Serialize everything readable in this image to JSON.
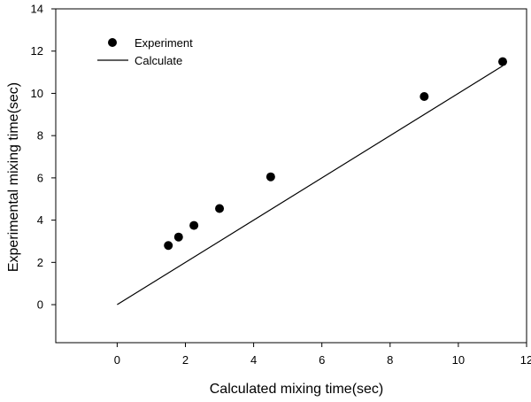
{
  "chart_data": {
    "type": "scatter",
    "title": "",
    "xlabel": "Calculated mixing time(sec)",
    "ylabel": "Experimental mixing time(sec)",
    "xlim": [
      -1.8,
      12
    ],
    "ylim": [
      -1.8,
      14
    ],
    "xticks": [
      0,
      2,
      4,
      6,
      8,
      10,
      12
    ],
    "yticks": [
      0,
      2,
      4,
      6,
      8,
      10,
      12,
      14
    ],
    "grid": false,
    "legend_position": "top-left",
    "series": [
      {
        "name": "Experiment",
        "kind": "scatter",
        "color": "#000000",
        "x": [
          1.5,
          1.8,
          2.25,
          3.0,
          4.5,
          9.0,
          11.3
        ],
        "y": [
          2.8,
          3.2,
          3.75,
          4.55,
          6.05,
          9.85,
          11.5
        ]
      },
      {
        "name": "Calculate",
        "kind": "line",
        "color": "#000000",
        "x": [
          0,
          11.3
        ],
        "y": [
          0,
          11.3
        ]
      }
    ]
  }
}
